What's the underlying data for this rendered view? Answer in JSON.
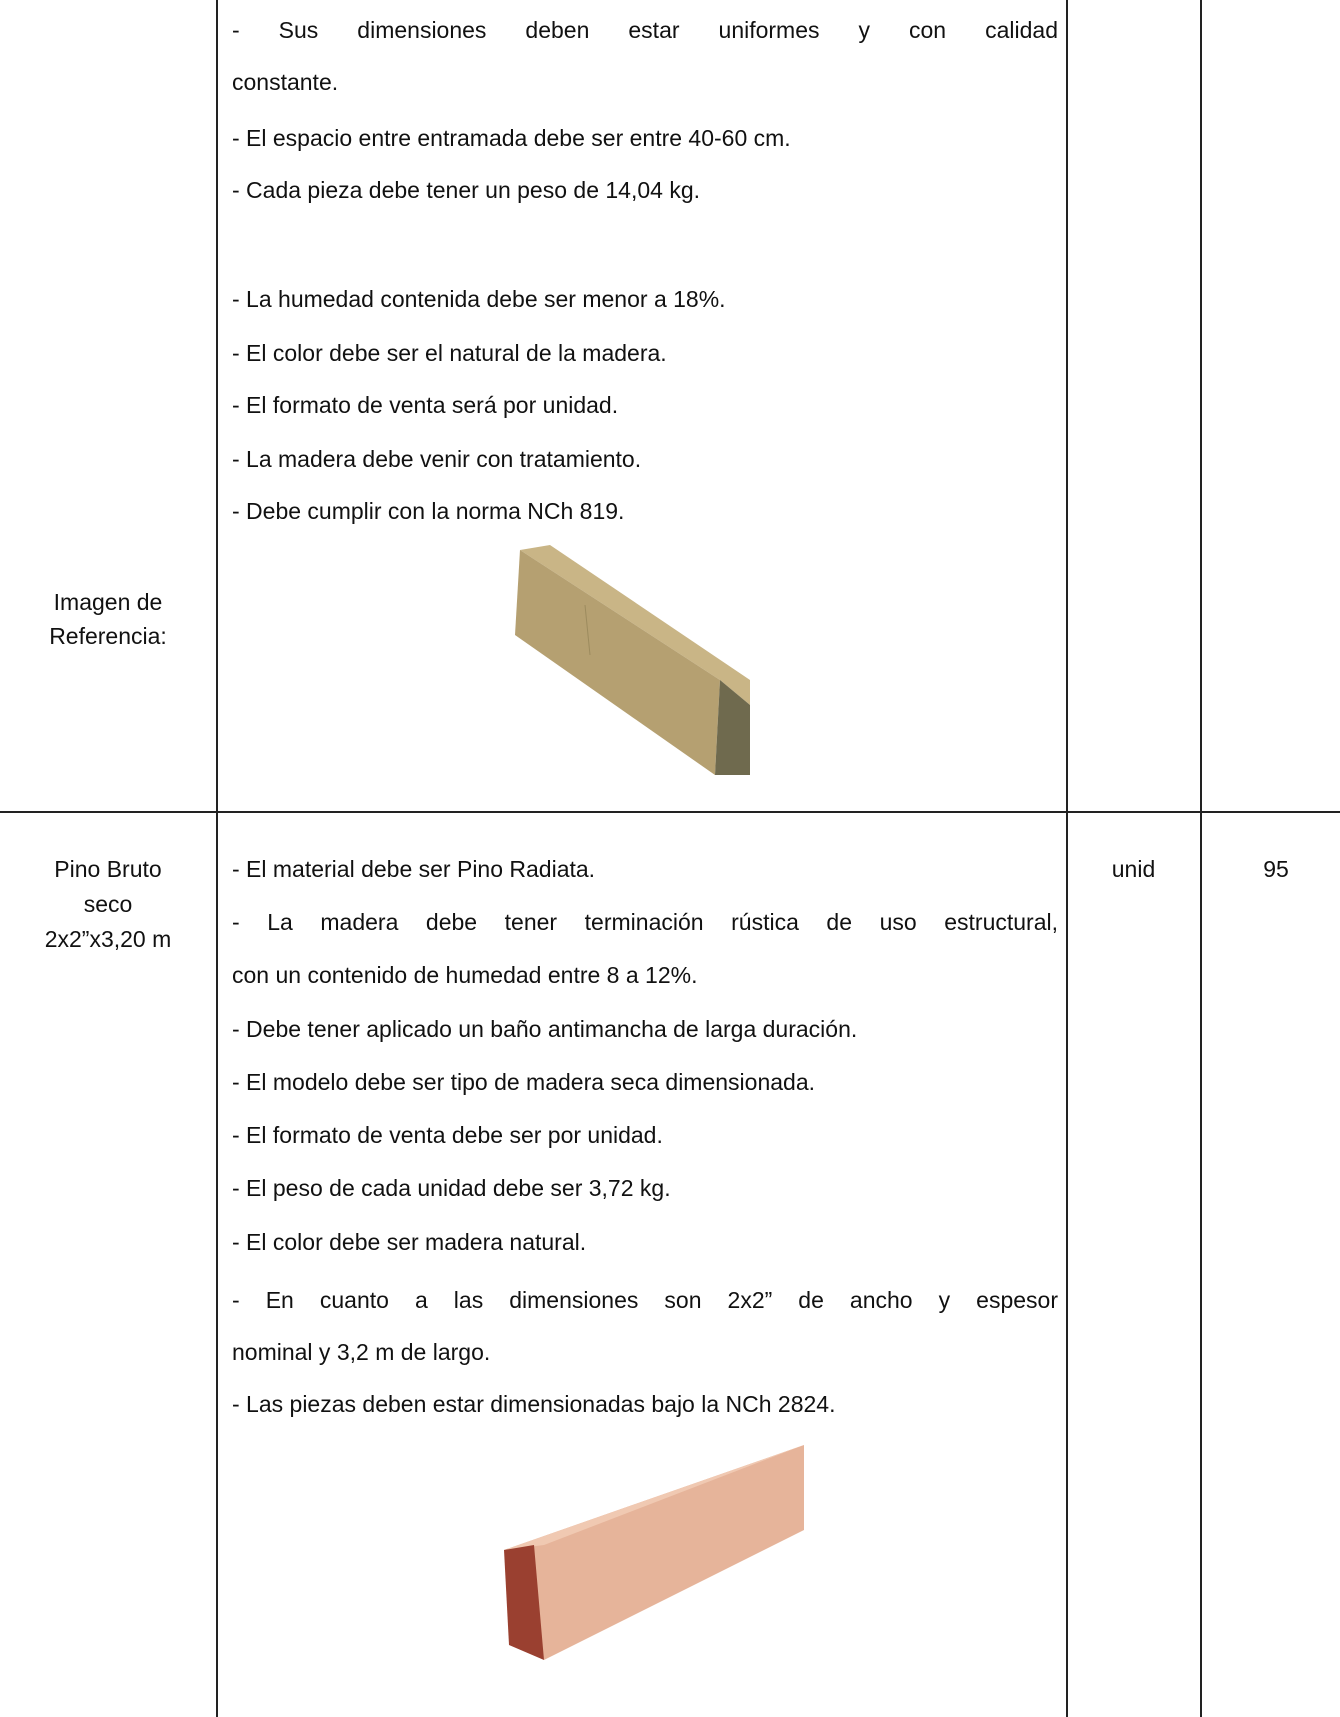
{
  "table": {
    "rows": [
      {
        "label": [
          "Imagen de",
          "Referencia:"
        ],
        "description": [
          "- Sus dimensiones deben estar uniformes y con calidad",
          "constante.",
          "- El espacio entre entramada debe ser entre 40-60 cm.",
          "- Cada pieza debe tener un peso de 14,04 kg.",
          "- La humedad contenida debe ser menor a 18%.",
          "- El color debe ser el natural de la madera.",
          "- El formato de venta será por unidad.",
          "- La madera debe venir con tratamiento.",
          "- Debe cumplir con la norma NCh 819."
        ]
      },
      {
        "label": [
          "Pino Bruto",
          "seco",
          "2x2”x3,20 m"
        ],
        "description": [
          "- El material debe ser Pino Radiata.",
          "- La madera debe tener terminación rústica de uso estructural,",
          "con un contenido de humedad entre 8 a 12%.",
          "- Debe tener aplicado un baño antimancha de larga duración.",
          "- El modelo debe ser tipo de madera seca dimensionada.",
          "- El formato de venta debe ser por unidad.",
          "- El peso de cada unidad debe ser 3,72 kg.",
          "- El color debe ser madera natural.",
          "- En cuanto a las dimensiones son 2x2” de ancho y espesor",
          "nominal y 3,2 m de largo.",
          "- Las piezas deben estar dimensionadas bajo la NCh 2824."
        ],
        "unit": "unid",
        "quantity": "95"
      }
    ]
  }
}
